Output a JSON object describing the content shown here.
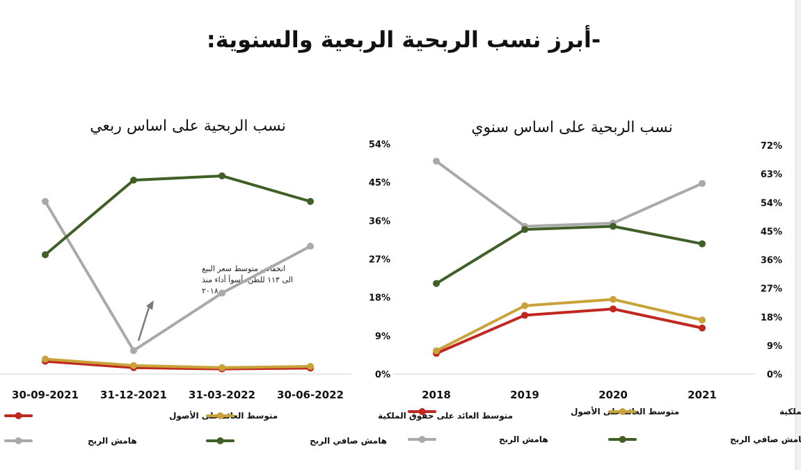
{
  "page": {
    "title": "-أبرز نسب الربحية الربعية والسنوية:"
  },
  "chart_data": [
    {
      "type": "line",
      "title": "نسب الربحية على اساس ربعي",
      "categories": [
        "30-09-2021",
        "31-12-2021",
        "31-03-2022",
        "30-06-2022"
      ],
      "ylim": [
        0,
        54
      ],
      "yticks": [
        "0%",
        "9%",
        "18%",
        "27%",
        "36%",
        "45%",
        "54%"
      ],
      "series": [
        {
          "name": "متوسط العائد على الأصول",
          "color": "#c0271f",
          "values": [
            3,
            1.5,
            1.2,
            1.4
          ]
        },
        {
          "name": "متوسط العائد على حقوق الملكية",
          "color": "#c9a23a",
          "values": [
            3.5,
            2,
            1.5,
            1.8
          ]
        },
        {
          "name": "هامش الربح",
          "color": "#a9a9a9",
          "values": [
            40.5,
            5.5,
            19,
            30
          ]
        },
        {
          "name": "هامش صافي الربح",
          "color": "#3f5f27",
          "values": [
            28,
            45.5,
            46.5,
            40.5
          ]
        }
      ],
      "annotation": {
        "lines": [
          "انخفاض متوسط سعر البيع",
          "الى ١١٣ للطن، أسوأ أداء منذ",
          "٢٠١٨"
        ]
      }
    },
    {
      "type": "line",
      "title": "نسب الربحية على اساس سنوي",
      "categories": [
        "2018",
        "2019",
        "2020",
        "2021"
      ],
      "ylim": [
        0,
        72
      ],
      "yticks": [
        "0%",
        "9%",
        "18%",
        "27%",
        "36%",
        "45%",
        "54%",
        "63%",
        "72%"
      ],
      "series": [
        {
          "name": "متوسط العائد على الأصول",
          "color": "#c0271f",
          "values": [
            6.5,
            18.5,
            20.5,
            14.5
          ]
        },
        {
          "name": "متوسط العائد على حقوق الملكية",
          "color": "#c9a23a",
          "values": [
            7.3,
            21.5,
            23.5,
            17
          ]
        },
        {
          "name": "هامش الربح",
          "color": "#a9a9a9",
          "values": [
            67,
            46.5,
            47.5,
            60
          ]
        },
        {
          "name": "هامش صافي الربح",
          "color": "#3f5f27",
          "values": [
            28.5,
            45.5,
            46.5,
            41
          ]
        }
      ]
    }
  ]
}
